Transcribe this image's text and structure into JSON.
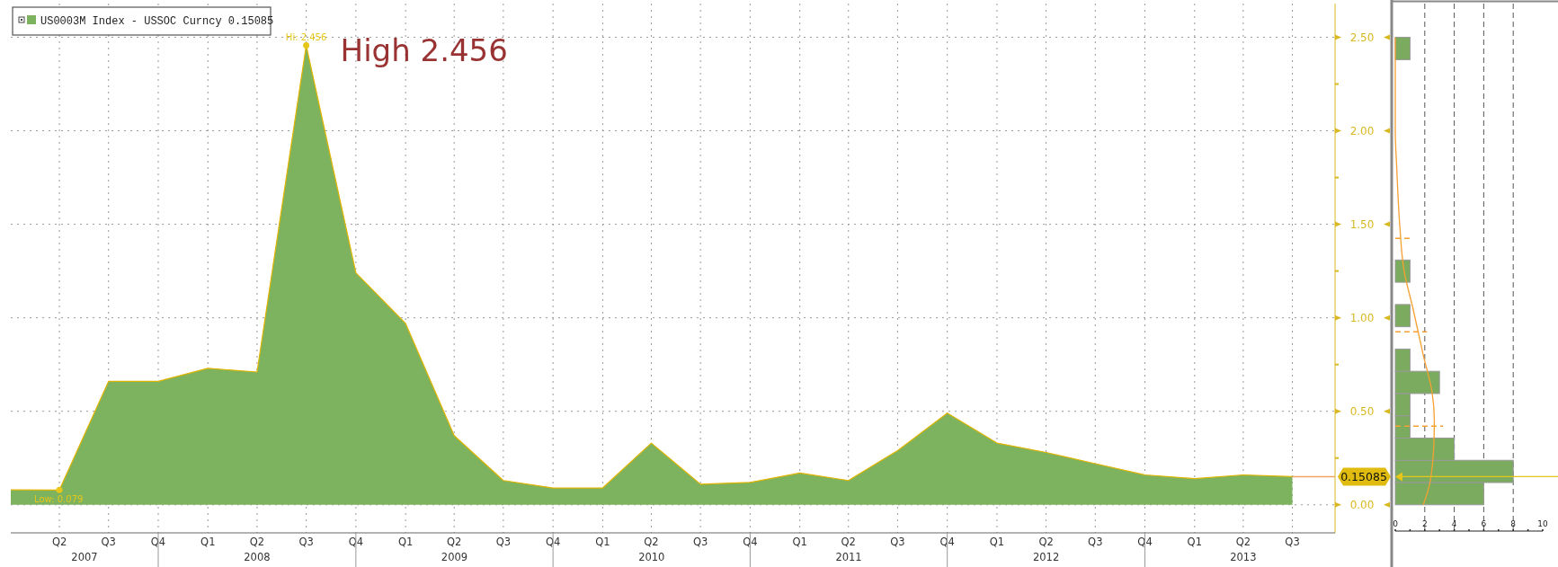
{
  "chart_data": [
    {
      "type": "area",
      "x": [
        "2007-01-01",
        "2007-04-01",
        "2007-07-01",
        "2007-10-01",
        "2008-01-01",
        "2008-04-01",
        "2008-07-01",
        "2008-10-01",
        "2009-01-01",
        "2009-04-01",
        "2009-07-01",
        "2009-10-01",
        "2010-01-01",
        "2010-04-01",
        "2010-07-01",
        "2010-10-01",
        "2011-01-01",
        "2011-04-01",
        "2011-07-01",
        "2011-10-01",
        "2012-01-01",
        "2012-04-01",
        "2012-07-01",
        "2012-10-01",
        "2013-01-01",
        "2013-04-01",
        "2013-07-01"
      ],
      "series": [
        {
          "name": "US0003M Index - USSOC Curncy 0.15085",
          "color": "#7db35e",
          "values": [
            0.08,
            0.079,
            0.66,
            0.66,
            0.73,
            0.71,
            2.456,
            1.24,
            0.97,
            0.37,
            0.13,
            0.09,
            0.09,
            0.33,
            0.11,
            0.12,
            0.17,
            0.13,
            0.29,
            0.49,
            0.33,
            0.28,
            0.22,
            0.16,
            0.14,
            0.16,
            0.15085
          ]
        }
      ],
      "xlim": [
        "2007-01-01",
        "2013-09-18"
      ],
      "xticks": [
        {
          "value": "2007-04-01",
          "label": "Q2"
        },
        {
          "value": "2007-07-01",
          "label": "Q3"
        },
        {
          "value": "2007-10-01",
          "label": "Q4"
        },
        {
          "value": "2008-01-01",
          "label": "Q1"
        },
        {
          "value": "2008-04-01",
          "label": "Q2"
        },
        {
          "value": "2008-07-01",
          "label": "Q3"
        },
        {
          "value": "2008-10-01",
          "label": "Q4"
        },
        {
          "value": "2009-01-01",
          "label": "Q1"
        },
        {
          "value": "2009-04-01",
          "label": "Q2"
        },
        {
          "value": "2009-07-01",
          "label": "Q3"
        },
        {
          "value": "2009-10-01",
          "label": "Q4"
        },
        {
          "value": "2010-01-01",
          "label": "Q1"
        },
        {
          "value": "2010-04-01",
          "label": "Q2"
        },
        {
          "value": "2010-07-01",
          "label": "Q3"
        },
        {
          "value": "2010-10-01",
          "label": "Q4"
        },
        {
          "value": "2011-01-01",
          "label": "Q1"
        },
        {
          "value": "2011-04-01",
          "label": "Q2"
        },
        {
          "value": "2011-07-01",
          "label": "Q3"
        },
        {
          "value": "2011-10-01",
          "label": "Q4"
        },
        {
          "value": "2012-01-01",
          "label": "Q1"
        },
        {
          "value": "2012-04-01",
          "label": "Q2"
        },
        {
          "value": "2012-07-01",
          "label": "Q3"
        },
        {
          "value": "2012-10-01",
          "label": "Q4"
        },
        {
          "value": "2013-01-01",
          "label": "Q1"
        },
        {
          "value": "2013-04-01",
          "label": "Q2"
        },
        {
          "value": "2013-07-01",
          "label": "Q3"
        }
      ],
      "ylim": [
        -0.15,
        2.68
      ],
      "yticks": [
        {
          "value": 0,
          "label": "0.00"
        },
        {
          "value": 0.25,
          "label": null
        },
        {
          "value": 0.5,
          "label": "0.50"
        },
        {
          "value": 0.75,
          "label": null
        },
        {
          "value": 1,
          "label": "1.00"
        },
        {
          "value": 1.25,
          "label": null
        },
        {
          "value": 1.5,
          "label": "1.50"
        },
        {
          "value": 1.75,
          "label": null
        },
        {
          "value": 2,
          "label": "2.00"
        },
        {
          "value": 2.25,
          "label": null
        },
        {
          "value": 2.5,
          "label": "2.50"
        }
      ],
      "grid": true,
      "legend": "top left",
      "ref_lines": [
        {
          "axis": "y",
          "value": 0.15085,
          "label": "0.15085",
          "color": "#f4a460"
        }
      ],
      "annotations": [
        {
          "text": "High 2.456",
          "x": "2008-07-01",
          "y": 2.456
        },
        {
          "text": "Hi: 2.456",
          "x": "2008-07-01",
          "y": 2.456
        },
        {
          "text": "Low: 0.079",
          "x": "2007-04-01",
          "y": 0.079
        },
        "2007",
        "2008",
        "2009",
        "2010",
        "2011",
        "2012",
        "2013"
      ]
    },
    {
      "type": "histogram",
      "orientation": "horizontal",
      "color": "#7aab5e",
      "bins": [
        0,
        0.119,
        0.238,
        0.357,
        0.476,
        0.595,
        0.714,
        0.833,
        0.952,
        1.071,
        1.19,
        1.309,
        1.428,
        1.547,
        1.666,
        1.785,
        1.904,
        2.023,
        2.142,
        2.261,
        2.38,
        2.5
      ],
      "values": [
        6,
        8,
        4,
        1,
        1,
        3,
        1,
        0,
        1,
        0,
        1,
        0,
        0,
        0,
        0,
        0,
        0,
        0,
        0,
        0,
        1
      ],
      "series": [
        {
          "type": "line",
          "color": "#f5a030",
          "x": [
            0,
            0.1,
            0.3,
            0.45,
            0.6,
            0.8,
            1.05,
            1.25,
            1.5,
            1.8,
            2.0,
            2.5
          ],
          "values": [
            1.9,
            2.3,
            2.6,
            2.65,
            2.5,
            1.9,
            1.2,
            0.6,
            0.3,
            0.1,
            0,
            0
          ]
        }
      ],
      "xlim": [
        0,
        10
      ],
      "xticks": [
        0,
        {
          "value": 1,
          "label": null
        },
        2,
        {
          "value": 3,
          "label": null
        },
        4,
        {
          "value": 5,
          "label": null
        },
        6,
        {
          "value": 7,
          "label": null
        },
        8,
        {
          "value": 9,
          "label": null
        },
        10
      ],
      "ylim": [
        -0.15,
        2.68
      ],
      "yticks": [
        0,
        0.5,
        1,
        1.5,
        2,
        2.5
      ],
      "tick_labels": "x",
      "grid": "x",
      "ref_lines": [
        {
          "axis": "y",
          "value": 0.15085,
          "color": "#e6c619"
        },
        {
          "axis": "y",
          "value": 0.42,
          "color": "#f5a030",
          "line_style": "dashed"
        },
        {
          "axis": "y",
          "value": 0.925,
          "color": "#f5a030",
          "line_style": "dashed"
        },
        {
          "axis": "y",
          "value": 1.425,
          "color": "#f5a030",
          "line_style": "dashed"
        }
      ]
    }
  ]
}
